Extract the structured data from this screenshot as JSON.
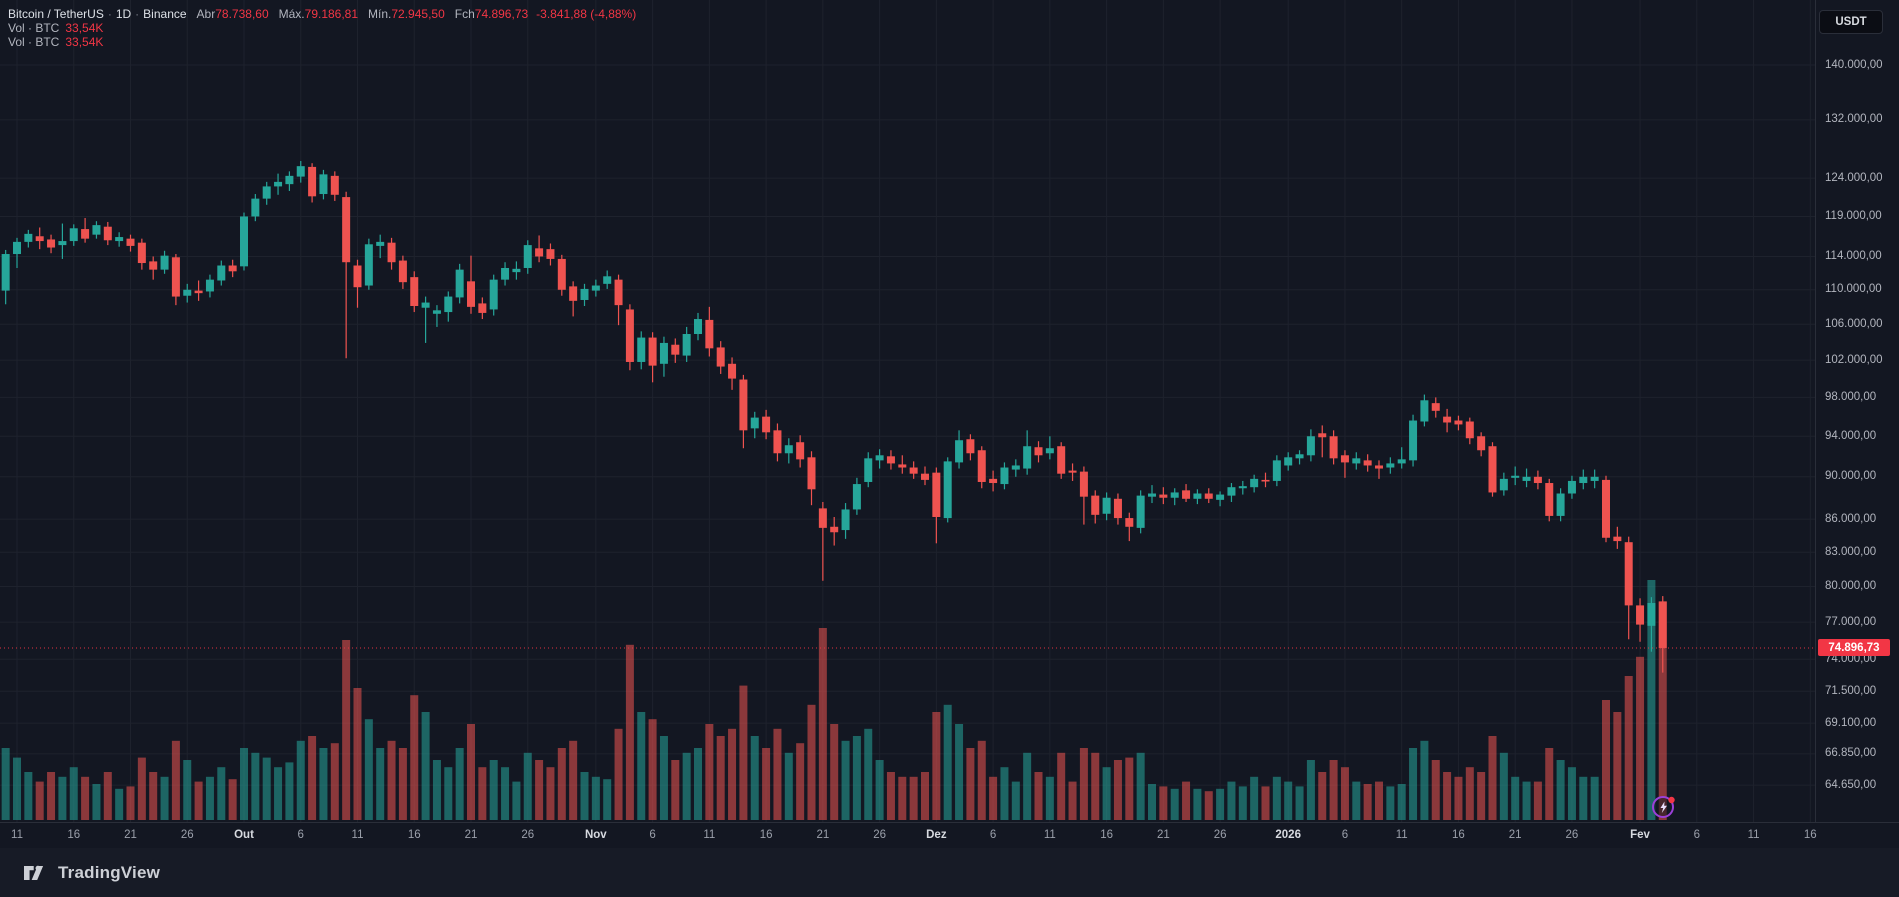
{
  "header": {
    "symbol_title": "Bitcoin / TetherUS",
    "separator": "·",
    "interval": "1D",
    "exchange": "Binance",
    "ohlc": [
      {
        "label": "Abr",
        "value": "78.738,60"
      },
      {
        "label": "Máx.",
        "value": "79.186,81"
      },
      {
        "label": "Mín.",
        "value": "72.945,50"
      },
      {
        "label": "Fch",
        "value": "74.896,73"
      }
    ],
    "change": "-3.841,88 (-4,88%)",
    "volume_rows": [
      {
        "label": "Vol · BTC",
        "value": "33,54K"
      },
      {
        "label": "Vol · BTC",
        "value": "33,54K"
      }
    ]
  },
  "currency_button": "USDT",
  "price_axis": {
    "last_price_label": "74.896,73",
    "ticks": [
      {
        "label": "140.000,00",
        "value": 140000
      },
      {
        "label": "132.000,00",
        "value": 132000
      },
      {
        "label": "124.000,00",
        "value": 124000
      },
      {
        "label": "119.000,00",
        "value": 119000
      },
      {
        "label": "114.000,00",
        "value": 114000
      },
      {
        "label": "110.000,00",
        "value": 110000
      },
      {
        "label": "106.000,00",
        "value": 106000
      },
      {
        "label": "102.000,00",
        "value": 102000
      },
      {
        "label": "98.000,00",
        "value": 98000
      },
      {
        "label": "94.000,00",
        "value": 94000
      },
      {
        "label": "90.000,00",
        "value": 90000
      },
      {
        "label": "86.000,00",
        "value": 86000
      },
      {
        "label": "83.000,00",
        "value": 83000
      },
      {
        "label": "80.000,00",
        "value": 80000
      },
      {
        "label": "77.000,00",
        "value": 77000
      },
      {
        "label": "74.000,00",
        "value": 74000
      },
      {
        "label": "71.500,00",
        "value": 71500
      },
      {
        "label": "69.100,00",
        "value": 69100
      },
      {
        "label": "66.850,00",
        "value": 66850
      },
      {
        "label": "64.650,00",
        "value": 64650
      }
    ]
  },
  "time_axis": {
    "labels": [
      {
        "label": "11",
        "i": 1
      },
      {
        "label": "16",
        "i": 6
      },
      {
        "label": "21",
        "i": 11
      },
      {
        "label": "26",
        "i": 16
      },
      {
        "label": "Out",
        "i": 21,
        "major": true
      },
      {
        "label": "6",
        "i": 26
      },
      {
        "label": "11",
        "i": 31
      },
      {
        "label": "16",
        "i": 36
      },
      {
        "label": "21",
        "i": 41
      },
      {
        "label": "26",
        "i": 46
      },
      {
        "label": "Nov",
        "i": 52,
        "major": true
      },
      {
        "label": "6",
        "i": 57
      },
      {
        "label": "11",
        "i": 62
      },
      {
        "label": "16",
        "i": 67
      },
      {
        "label": "21",
        "i": 72
      },
      {
        "label": "26",
        "i": 77
      },
      {
        "label": "Dez",
        "i": 82,
        "major": true
      },
      {
        "label": "6",
        "i": 87
      },
      {
        "label": "11",
        "i": 92
      },
      {
        "label": "16",
        "i": 97
      },
      {
        "label": "21",
        "i": 102
      },
      {
        "label": "26",
        "i": 107
      },
      {
        "label": "2026",
        "i": 113,
        "major": true
      },
      {
        "label": "6",
        "i": 118
      },
      {
        "label": "11",
        "i": 123
      },
      {
        "label": "16",
        "i": 128
      },
      {
        "label": "21",
        "i": 133
      },
      {
        "label": "26",
        "i": 138
      },
      {
        "label": "Fev",
        "i": 144,
        "major": true
      },
      {
        "label": "6",
        "i": 149
      },
      {
        "label": "11",
        "i": 154
      },
      {
        "label": "16",
        "i": 159
      }
    ]
  },
  "footer": {
    "brand": "TradingView"
  },
  "colors": {
    "background": "#131722",
    "grid": "#1e222d",
    "up": "#26a69a",
    "down": "#ef5350",
    "volume_up": "rgba(38,166,154,0.55)",
    "volume_down": "rgba(239,83,80,0.55)",
    "accent_red": "#f23645",
    "axis_text": "#b2b5be",
    "border": "#2a2e39",
    "bolt_purple": "#9b3fd9"
  },
  "chart_data": {
    "type": "candlestick",
    "title": "Bitcoin / TetherUS · 1D · Binance",
    "y_scale": "log",
    "y_visible_range": [
      63500,
      143500
    ],
    "x_start_date": "2025-09-10",
    "x_end_date": "2026-02-03",
    "interval": "1D",
    "last_candle": {
      "open": 78738.6,
      "high": 79186.81,
      "low": 72945.5,
      "close": 74896.73,
      "change": -3841.88,
      "change_pct": -4.88
    },
    "last_price": 74896.73,
    "volume_note": "v is relative bar height, 1.0 = tallest bar (2026-02-02)",
    "candles": [
      [
        109900,
        114800,
        108300,
        114300,
        0.3
      ],
      [
        114300,
        116300,
        112600,
        115800,
        0.26
      ],
      [
        115800,
        117300,
        115100,
        116800,
        0.2
      ],
      [
        116500,
        117600,
        114900,
        115900,
        0.16
      ],
      [
        116100,
        116700,
        114400,
        115100,
        0.2
      ],
      [
        115400,
        118100,
        113700,
        115900,
        0.18
      ],
      [
        115900,
        118000,
        115300,
        117500,
        0.22
      ],
      [
        117400,
        118800,
        115700,
        116200,
        0.18
      ],
      [
        116700,
        118400,
        116200,
        117900,
        0.15
      ],
      [
        117700,
        118300,
        115400,
        116000,
        0.2
      ],
      [
        115900,
        117000,
        115200,
        116400,
        0.13
      ],
      [
        116200,
        116700,
        114600,
        115300,
        0.14
      ],
      [
        115700,
        116200,
        112400,
        113200,
        0.26
      ],
      [
        113400,
        114000,
        111200,
        112400,
        0.2
      ],
      [
        112400,
        114700,
        111900,
        114100,
        0.18
      ],
      [
        113900,
        114300,
        108200,
        109200,
        0.33
      ],
      [
        109300,
        110700,
        108500,
        110000,
        0.25
      ],
      [
        109900,
        111100,
        108700,
        109600,
        0.16
      ],
      [
        109800,
        111800,
        109100,
        111200,
        0.18
      ],
      [
        111100,
        113500,
        110500,
        112900,
        0.22
      ],
      [
        112900,
        113600,
        111500,
        112200,
        0.17
      ],
      [
        112800,
        119500,
        112300,
        119000,
        0.3
      ],
      [
        119000,
        121900,
        118400,
        121300,
        0.28
      ],
      [
        121300,
        123500,
        120500,
        122900,
        0.26
      ],
      [
        122900,
        124600,
        121800,
        123500,
        0.22
      ],
      [
        123200,
        124900,
        122300,
        124300,
        0.24
      ],
      [
        124200,
        126300,
        123400,
        125600,
        0.33
      ],
      [
        125500,
        126000,
        120800,
        121600,
        0.35
      ],
      [
        121900,
        125100,
        121200,
        124500,
        0.3
      ],
      [
        124300,
        124900,
        121000,
        121800,
        0.32
      ],
      [
        121500,
        122200,
        102200,
        113300,
        0.75
      ],
      [
        112900,
        113600,
        107900,
        110300,
        0.55
      ],
      [
        110500,
        116200,
        110000,
        115500,
        0.42
      ],
      [
        115300,
        116700,
        113800,
        115800,
        0.3
      ],
      [
        115700,
        116300,
        112400,
        113300,
        0.33
      ],
      [
        113500,
        114100,
        110100,
        110900,
        0.3
      ],
      [
        111500,
        112200,
        107400,
        108100,
        0.52
      ],
      [
        107900,
        109200,
        103900,
        108500,
        0.45
      ],
      [
        107200,
        108200,
        105700,
        107600,
        0.25
      ],
      [
        107400,
        109800,
        106300,
        109200,
        0.22
      ],
      [
        109100,
        113100,
        108400,
        112400,
        0.3
      ],
      [
        111000,
        114100,
        107200,
        108000,
        0.4
      ],
      [
        108400,
        109100,
        106600,
        107300,
        0.22
      ],
      [
        107700,
        111800,
        107000,
        111200,
        0.25
      ],
      [
        111200,
        113300,
        110500,
        112600,
        0.22
      ],
      [
        112100,
        113400,
        111200,
        112500,
        0.16
      ],
      [
        112600,
        116000,
        111900,
        115400,
        0.28
      ],
      [
        115000,
        116600,
        113300,
        114000,
        0.25
      ],
      [
        114900,
        115600,
        112900,
        113700,
        0.22
      ],
      [
        113700,
        114200,
        109300,
        110000,
        0.3
      ],
      [
        110400,
        111000,
        106900,
        108700,
        0.33
      ],
      [
        108800,
        110700,
        108100,
        110100,
        0.2
      ],
      [
        109900,
        111200,
        109200,
        110500,
        0.18
      ],
      [
        110700,
        112300,
        110100,
        111600,
        0.17
      ],
      [
        111200,
        111800,
        105900,
        108200,
        0.38
      ],
      [
        107700,
        108300,
        100900,
        101800,
        0.73
      ],
      [
        101800,
        105200,
        101000,
        104500,
        0.45
      ],
      [
        104500,
        105100,
        99600,
        101400,
        0.42
      ],
      [
        101600,
        104600,
        100200,
        103900,
        0.35
      ],
      [
        103700,
        104400,
        101700,
        102600,
        0.25
      ],
      [
        102500,
        105700,
        101800,
        104900,
        0.28
      ],
      [
        104900,
        107300,
        104200,
        106600,
        0.3
      ],
      [
        106500,
        108000,
        102400,
        103300,
        0.4
      ],
      [
        103400,
        104100,
        100500,
        101300,
        0.35
      ],
      [
        101600,
        102300,
        98800,
        100000,
        0.38
      ],
      [
        99900,
        100400,
        92800,
        94600,
        0.56
      ],
      [
        94800,
        96500,
        93800,
        95900,
        0.35
      ],
      [
        96000,
        96700,
        93700,
        94400,
        0.3
      ],
      [
        94600,
        95300,
        91500,
        92300,
        0.38
      ],
      [
        92300,
        93800,
        91300,
        93100,
        0.28
      ],
      [
        93400,
        94100,
        90900,
        91700,
        0.32
      ],
      [
        91900,
        92500,
        87300,
        88800,
        0.48
      ],
      [
        87000,
        87600,
        80500,
        85200,
        0.8
      ],
      [
        85300,
        86200,
        83600,
        84800,
        0.4
      ],
      [
        85000,
        87500,
        84200,
        86900,
        0.33
      ],
      [
        86900,
        89900,
        86400,
        89300,
        0.35
      ],
      [
        89500,
        92400,
        89000,
        91800,
        0.38
      ],
      [
        91600,
        92700,
        90800,
        92100,
        0.25
      ],
      [
        92000,
        92600,
        90700,
        91300,
        0.2
      ],
      [
        91200,
        92100,
        90300,
        90900,
        0.18
      ],
      [
        90900,
        91500,
        89800,
        90300,
        0.18
      ],
      [
        90300,
        91000,
        89200,
        89700,
        0.2
      ],
      [
        90400,
        90900,
        83800,
        86200,
        0.45
      ],
      [
        86100,
        91900,
        85700,
        91500,
        0.48
      ],
      [
        91400,
        94600,
        90800,
        93600,
        0.4
      ],
      [
        93700,
        94200,
        91600,
        92300,
        0.3
      ],
      [
        92600,
        93000,
        88900,
        89500,
        0.33
      ],
      [
        89800,
        90600,
        88600,
        89400,
        0.18
      ],
      [
        89300,
        91400,
        88800,
        90900,
        0.22
      ],
      [
        90700,
        91700,
        90000,
        91100,
        0.16
      ],
      [
        90800,
        94600,
        90200,
        93000,
        0.28
      ],
      [
        92900,
        93500,
        91400,
        92100,
        0.2
      ],
      [
        92300,
        94000,
        91700,
        92800,
        0.18
      ],
      [
        93000,
        93400,
        89800,
        90300,
        0.28
      ],
      [
        90600,
        91300,
        89600,
        90400,
        0.16
      ],
      [
        90500,
        91000,
        85500,
        88100,
        0.3
      ],
      [
        88200,
        88700,
        85600,
        86400,
        0.28
      ],
      [
        86500,
        88500,
        85900,
        88000,
        0.22
      ],
      [
        87900,
        88400,
        85500,
        86100,
        0.25
      ],
      [
        86100,
        86600,
        84000,
        85300,
        0.26
      ],
      [
        85200,
        88700,
        84700,
        88200,
        0.28
      ],
      [
        88100,
        89200,
        87500,
        88400,
        0.15
      ],
      [
        88300,
        89000,
        87400,
        88000,
        0.14
      ],
      [
        88000,
        88900,
        87300,
        88500,
        0.13
      ],
      [
        88700,
        89300,
        87600,
        87900,
        0.16
      ],
      [
        87900,
        88800,
        87400,
        88400,
        0.13
      ],
      [
        88400,
        88900,
        87500,
        87900,
        0.12
      ],
      [
        87800,
        88600,
        87200,
        88300,
        0.13
      ],
      [
        88200,
        89400,
        87600,
        89000,
        0.16
      ],
      [
        88900,
        89600,
        88300,
        89100,
        0.14
      ],
      [
        89000,
        90200,
        88500,
        89800,
        0.18
      ],
      [
        89700,
        90400,
        89000,
        89600,
        0.14
      ],
      [
        89600,
        92100,
        89100,
        91600,
        0.18
      ],
      [
        91100,
        92400,
        90600,
        91900,
        0.16
      ],
      [
        91800,
        92600,
        91200,
        92200,
        0.14
      ],
      [
        92100,
        94700,
        91500,
        94000,
        0.25
      ],
      [
        94300,
        95100,
        91900,
        93900,
        0.2
      ],
      [
        94000,
        94600,
        91200,
        91800,
        0.25
      ],
      [
        92100,
        92600,
        89900,
        91400,
        0.22
      ],
      [
        91300,
        92400,
        90700,
        91800,
        0.16
      ],
      [
        91600,
        92200,
        90500,
        91100,
        0.15
      ],
      [
        91100,
        91600,
        89800,
        90800,
        0.16
      ],
      [
        90900,
        91900,
        90300,
        91300,
        0.14
      ],
      [
        91300,
        92900,
        90800,
        91700,
        0.15
      ],
      [
        91600,
        96200,
        91000,
        95600,
        0.3
      ],
      [
        95500,
        98300,
        95000,
        97700,
        0.33
      ],
      [
        97400,
        98000,
        95900,
        96600,
        0.25
      ],
      [
        96000,
        96800,
        94400,
        95400,
        0.2
      ],
      [
        95600,
        96100,
        94600,
        95200,
        0.18
      ],
      [
        95500,
        95900,
        93200,
        93800,
        0.22
      ],
      [
        94000,
        94400,
        92000,
        92600,
        0.2
      ],
      [
        93000,
        93400,
        88100,
        88500,
        0.35
      ],
      [
        88700,
        90400,
        88200,
        89800,
        0.28
      ],
      [
        89900,
        91000,
        89200,
        90100,
        0.18
      ],
      [
        89600,
        90800,
        89000,
        90000,
        0.16
      ],
      [
        90000,
        90600,
        88800,
        89400,
        0.16
      ],
      [
        89400,
        89800,
        85800,
        86300,
        0.3
      ],
      [
        86300,
        88900,
        85800,
        88400,
        0.25
      ],
      [
        88400,
        90100,
        87900,
        89600,
        0.22
      ],
      [
        89400,
        90700,
        88800,
        90000,
        0.18
      ],
      [
        89600,
        90700,
        88900,
        90000,
        0.18
      ],
      [
        89700,
        90100,
        83900,
        84300,
        0.5
      ],
      [
        84400,
        85300,
        83300,
        84000,
        0.45
      ],
      [
        83900,
        84400,
        75600,
        78400,
        0.6
      ],
      [
        78400,
        79000,
        75400,
        76800,
        0.68
      ],
      [
        76700,
        79100,
        74600,
        78600,
        1.0
      ],
      [
        78738.6,
        79186.81,
        72945.5,
        74896.73,
        0.91
      ]
    ]
  }
}
